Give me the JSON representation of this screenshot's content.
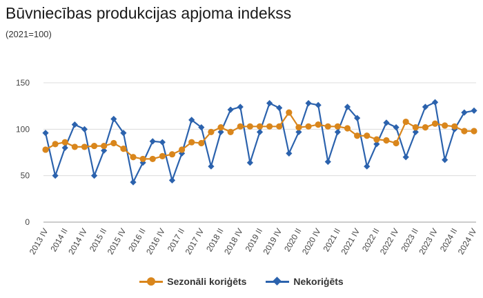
{
  "title": "Būvniecības produkcijas apjoma indekss",
  "subtitle": "(2021=100)",
  "chart_data": {
    "type": "line",
    "title": "Būvniecības produkcijas apjoma indekss",
    "subtitle": "(2021=100)",
    "ylim": [
      0,
      150
    ],
    "yticks": [
      0,
      50,
      100,
      150
    ],
    "grid": true,
    "legend_position": "bottom",
    "categories": [
      "2013 IV",
      "2014 I",
      "2014 II",
      "2014 III",
      "2014 IV",
      "2015 I",
      "2015 II",
      "2015 III",
      "2015 IV",
      "2016 I",
      "2016 II",
      "2016 III",
      "2016 IV",
      "2017 I",
      "2017 II",
      "2017 III",
      "2017 IV",
      "2018 I",
      "2018 II",
      "2018 III",
      "2018 IV",
      "2019 I",
      "2019 II",
      "2019 III",
      "2019 IV",
      "2020 I",
      "2020 II",
      "2020 III",
      "2020 IV",
      "2021 I",
      "2021 II",
      "2021 III",
      "2021 IV",
      "2022 I",
      "2022 II",
      "2022 III",
      "2022 IV",
      "2023 I",
      "2023 II",
      "2023 III",
      "2023 IV",
      "2024 I",
      "2024 II",
      "2024 III",
      "2024 IV"
    ],
    "tick_labels": [
      "2013 IV",
      "2014 II",
      "2014 IV",
      "2015 II",
      "2015 IV",
      "2016 II",
      "2016 IV",
      "2017 II",
      "2017 IV",
      "2018 II",
      "2018 IV",
      "2019 II",
      "2019 IV",
      "2020 II",
      "2020 IV",
      "2021 II",
      "2021 IV",
      "2022 II",
      "2022 IV",
      "2023 II",
      "2023 IV",
      "2024 II",
      "2024 IV"
    ],
    "series": [
      {
        "name": "Sezonāli koriģēts",
        "color": "#d9861c",
        "marker": "circle",
        "values": [
          78,
          84,
          86,
          81,
          81,
          82,
          82,
          85,
          79,
          70,
          68,
          68,
          71,
          73,
          78,
          86,
          85,
          97,
          102,
          97,
          103,
          103,
          103,
          103,
          103,
          118,
          102,
          103,
          105,
          103,
          103,
          101,
          93,
          93,
          89,
          88,
          85,
          108,
          102,
          102,
          106,
          104,
          103,
          98,
          98
        ]
      },
      {
        "name": "Nekoriģēts",
        "color": "#2b62ad",
        "marker": "diamond",
        "values": [
          96,
          50,
          80,
          105,
          100,
          50,
          77,
          111,
          96,
          43,
          64,
          87,
          86,
          45,
          74,
          110,
          102,
          60,
          97,
          121,
          124,
          64,
          97,
          128,
          123,
          74,
          97,
          128,
          126,
          65,
          97,
          124,
          112,
          60,
          84,
          107,
          102,
          70,
          97,
          124,
          129,
          67,
          100,
          118,
          120
        ]
      }
    ]
  }
}
